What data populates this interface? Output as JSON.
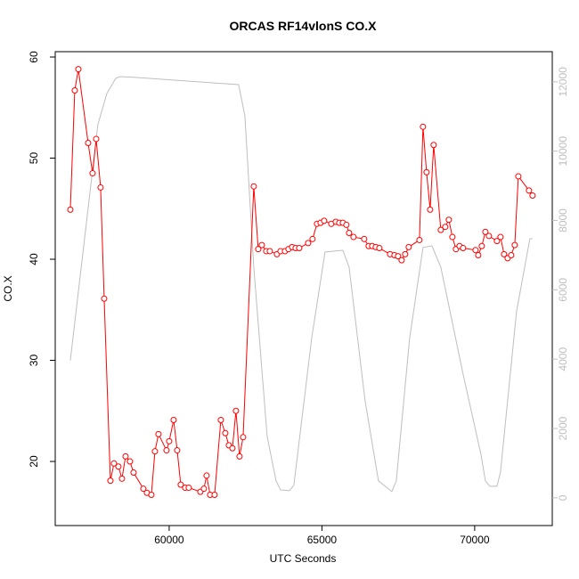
{
  "chart_data": {
    "type": "line",
    "title": "ORCAS RF14vlonS CO.X",
    "x_label": "UTC Seconds",
    "y_label": "CO.X",
    "xlim": [
      56270,
      72540
    ],
    "xticks": [
      60000,
      65000,
      70000
    ],
    "ylim": [
      13.66,
      60.53
    ],
    "yticks": [
      20,
      30,
      40,
      50,
      60
    ],
    "y2lim": [
      -800,
      12870
    ],
    "y2ticks": [
      0,
      2000,
      4000,
      6000,
      8000,
      10000,
      12000
    ],
    "series": [
      {
        "color": "#ff0000",
        "markers": true,
        "x": [
          56764,
          56910,
          57027,
          57347,
          57493,
          57610,
          57755,
          57872,
          58076,
          58193,
          58338,
          58455,
          58572,
          58717,
          58834,
          59155,
          59271,
          59417,
          59534,
          59650,
          59913,
          60000,
          60146,
          60262,
          60379,
          60525,
          60641,
          61020,
          61137,
          61224,
          61341,
          61487,
          61691,
          61837,
          61953,
          62070,
          62186,
          62303,
          62420,
          62769,
          62915,
          63032,
          63177,
          63294,
          63527,
          63644,
          63790,
          63906,
          64023,
          64140,
          64256,
          64548,
          64693,
          64839,
          64956,
          65072,
          65306,
          65452,
          65568,
          65685,
          65801,
          65889,
          66034,
          66384,
          66530,
          66646,
          66763,
          66880,
          67230,
          67375,
          67492,
          67609,
          67725,
          67842,
          68192,
          68308,
          68425,
          68542,
          68658,
          68891,
          69037,
          69154,
          69270,
          69387,
          69504,
          69620,
          70029,
          70117,
          70233,
          70350,
          70466,
          70729,
          70845,
          70962,
          71079,
          71195,
          71312,
          71429,
          71778,
          71894
        ],
        "values": [
          44.9,
          56.7,
          58.8,
          51.5,
          48.5,
          51.9,
          47.1,
          36.1,
          18.1,
          19.8,
          19.5,
          18.3,
          20.5,
          20.0,
          18.9,
          17.3,
          16.9,
          16.7,
          21.0,
          22.7,
          21.1,
          22.0,
          24.1,
          21.1,
          17.7,
          17.4,
          17.4,
          17.0,
          17.3,
          18.6,
          16.7,
          16.7,
          24.1,
          22.8,
          21.6,
          21.3,
          25.0,
          20.5,
          22.4,
          47.2,
          41.0,
          41.4,
          40.8,
          40.8,
          40.5,
          40.8,
          40.8,
          41.0,
          41.2,
          41.1,
          41.1,
          41.6,
          42.0,
          43.5,
          43.6,
          43.8,
          43.5,
          43.7,
          43.6,
          43.6,
          43.4,
          42.6,
          42.2,
          42.0,
          41.3,
          41.3,
          41.2,
          41.1,
          40.5,
          40.4,
          40.3,
          39.9,
          40.5,
          41.2,
          41.9,
          53.1,
          48.6,
          44.9,
          51.3,
          42.9,
          43.2,
          43.9,
          42.2,
          41.0,
          41.3,
          41.1,
          40.9,
          40.4,
          41.3,
          42.7,
          42.3,
          41.8,
          42.2,
          40.5,
          40.1,
          40.4,
          41.4,
          48.2,
          46.8,
          46.3
        ]
      },
      {
        "color": "#bebebe",
        "markers": false,
        "axis": "y2",
        "x": [
          56764,
          57667,
          57960,
          58250,
          58400,
          58834,
          62273,
          62478,
          62769,
          63207,
          63498,
          63644,
          63935,
          64081,
          64664,
          65101,
          65685,
          65889,
          66413,
          66850,
          67288,
          67434,
          67870,
          68308,
          68600,
          68891,
          69620,
          70204,
          70350,
          70495,
          70729,
          70845,
          71370,
          71807,
          71894
        ],
        "values": [
          3960,
          10770,
          11665,
          12100,
          12150,
          12130,
          11920,
          11020,
          6655,
          1770,
          490,
          230,
          205,
          360,
          4600,
          7090,
          7140,
          6655,
          2800,
          490,
          180,
          490,
          4600,
          7220,
          7270,
          6655,
          3570,
          1260,
          490,
          335,
          335,
          745,
          5370,
          7475,
          7475
        ]
      }
    ]
  }
}
